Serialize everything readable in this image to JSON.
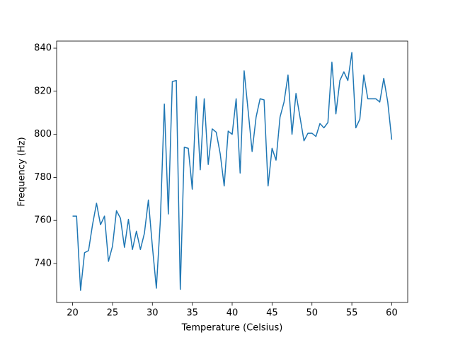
{
  "chart_data": {
    "type": "line",
    "xlabel": "Temperature (Celsius)",
    "ylabel": "Frequency (Hz)",
    "x": [
      20,
      20.5,
      21,
      21.5,
      22,
      22.5,
      23,
      23.5,
      24,
      24.5,
      25,
      25.5,
      26,
      26.5,
      27,
      27.5,
      28,
      28.5,
      29,
      29.5,
      30,
      30.5,
      31,
      31.5,
      32,
      32.5,
      33,
      33.5,
      34,
      34.5,
      35,
      35.5,
      36,
      36.5,
      37,
      37.5,
      38,
      38.5,
      39,
      39.5,
      40,
      40.5,
      41,
      41.5,
      42,
      42.5,
      43,
      43.5,
      44,
      44.5,
      45,
      45.5,
      46,
      46.5,
      47,
      47.5,
      48,
      48.5,
      49,
      49.5,
      50,
      50.5,
      51,
      51.5,
      52,
      52.5,
      53,
      53.5,
      54,
      54.5,
      55,
      55.5,
      56,
      56.5,
      57,
      57.5,
      58,
      58.5,
      59,
      59.5,
      60
    ],
    "values": [
      762,
      762,
      727.5,
      745,
      746,
      758,
      768,
      758,
      762,
      741,
      748,
      764.5,
      761,
      747.5,
      760.5,
      746.5,
      755,
      746.5,
      754,
      769.5,
      748,
      728.5,
      760,
      814,
      763,
      824.5,
      825,
      728,
      794,
      793.5,
      774.5,
      817.5,
      783.5,
      816.5,
      786,
      802.5,
      801,
      791,
      776,
      801.5,
      800,
      816.5,
      782,
      829.5,
      811,
      792,
      808,
      816.5,
      816,
      776,
      793.5,
      788,
      808,
      815,
      827.5,
      800,
      819,
      808,
      797,
      800.5,
      800.5,
      799,
      805,
      803,
      805.5,
      833.5,
      809.5,
      825,
      829,
      825,
      838,
      803,
      807,
      827.5,
      816.5,
      816.5,
      816.5,
      815,
      826,
      815,
      797.5
    ],
    "color": "#1f77b4",
    "xlim": [
      18,
      62
    ],
    "ylim": [
      721.9,
      843.3
    ],
    "xticks": [
      20,
      25,
      30,
      35,
      40,
      45,
      50,
      55,
      60
    ],
    "yticks": [
      740,
      760,
      780,
      800,
      820,
      840
    ]
  }
}
